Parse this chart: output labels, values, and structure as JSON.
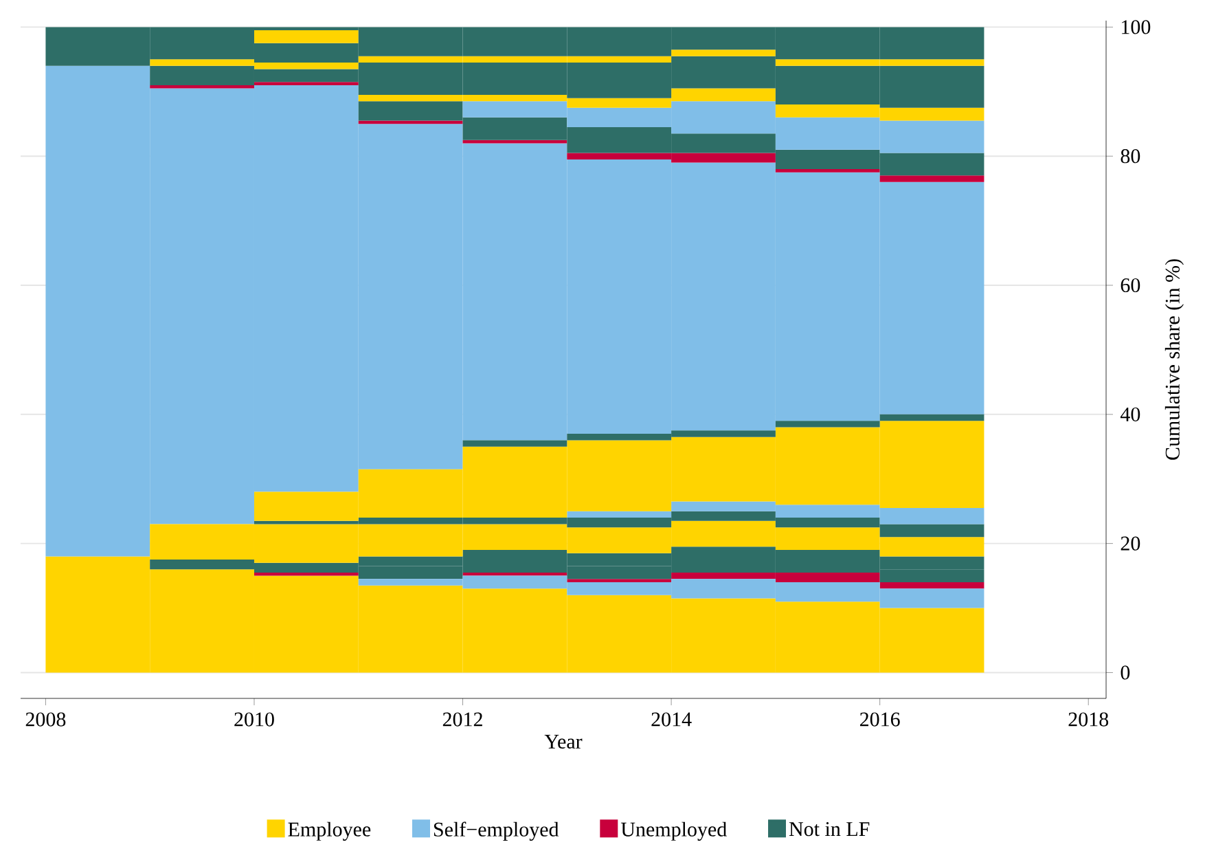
{
  "chart_data": {
    "type": "bar",
    "stacked": true,
    "xlabel": "Year",
    "ylabel": "Cumulative share (in %)",
    "x": [
      2008.5,
      2009.5,
      2010.5,
      2011.5,
      2012.5,
      2013.5,
      2014.5,
      2015.5,
      2016.5
    ],
    "xlim": [
      2007.76,
      2018.17
    ],
    "xticks": [
      2008,
      2010,
      2012,
      2014,
      2016,
      2018
    ],
    "ylim": [
      -4,
      101
    ],
    "yticks": [
      0,
      20,
      40,
      60,
      80,
      100
    ],
    "grid": "y",
    "legend": "bottom",
    "series": [
      {
        "name": "Employee",
        "color": "#ffd400",
        "values": [
          18,
          16,
          15,
          13.5,
          13,
          12,
          11.5,
          11,
          10
        ]
      },
      {
        "color": "#80bee8",
        "values": [
          null,
          null,
          null,
          1,
          2,
          2,
          3,
          3,
          3
        ]
      },
      {
        "name": "Unemployed",
        "color": "#c8003c",
        "values": [
          null,
          null,
          0.5,
          null,
          0.5,
          0.5,
          1,
          1.5,
          1
        ]
      },
      {
        "name": "Not in LF",
        "color": "#2e6e67",
        "values": [
          null,
          1.5,
          1.5,
          2,
          2,
          2,
          2,
          2,
          2
        ]
      },
      {
        "color": "#2e6e67",
        "values": [
          null,
          null,
          null,
          1.5,
          1.5,
          2,
          2,
          1.5,
          2
        ]
      },
      {
        "color": "#ffd400",
        "values": [
          null,
          5.5,
          6,
          5,
          4,
          4,
          4,
          3.5,
          3
        ]
      },
      {
        "color": "#2e6e67",
        "values": [
          null,
          null,
          0.5,
          1,
          1,
          1.5,
          1.5,
          1.5,
          2
        ]
      },
      {
        "color": "#80bee8",
        "values": [
          null,
          null,
          null,
          null,
          null,
          1,
          1.5,
          2,
          2.5
        ]
      },
      {
        "color": "#ffd400",
        "values": [
          null,
          null,
          4.5,
          7.5,
          11,
          11,
          10,
          12,
          13.5
        ]
      },
      {
        "color": "#2e6e67",
        "values": [
          null,
          null,
          null,
          null,
          1,
          1,
          1,
          1,
          1
        ]
      },
      {
        "name": "Self−employed",
        "color": "#80bee8",
        "values": [
          76,
          67.5,
          63,
          53.5,
          46,
          42.5,
          41.5,
          38.5,
          36
        ]
      },
      {
        "color": "#c8003c",
        "values": [
          null,
          0.5,
          0.5,
          0.5,
          0.5,
          1,
          1.5,
          0.5,
          1
        ]
      },
      {
        "color": "#2e6e67",
        "values": [
          null,
          null,
          2,
          3,
          3.5,
          4,
          3,
          3,
          3.5
        ]
      },
      {
        "color": "#80bee8",
        "values": [
          null,
          null,
          null,
          null,
          2.5,
          3,
          5,
          5,
          5
        ]
      },
      {
        "color": "#ffd400",
        "values": [
          null,
          null,
          1,
          1,
          1,
          1.5,
          2,
          2,
          2
        ]
      },
      {
        "color": "#2e6e67",
        "values": [
          null,
          3,
          3,
          5,
          5,
          5.5,
          5,
          6,
          6.5
        ]
      },
      {
        "color": "#ffd400",
        "values": [
          null,
          1,
          2,
          1,
          1,
          1,
          1,
          1,
          1
        ]
      },
      {
        "color": "#2e6e67",
        "values": [
          6,
          5,
          0.5,
          4.5,
          4.5,
          4.5,
          3.5,
          5,
          5
        ]
      }
    ]
  }
}
